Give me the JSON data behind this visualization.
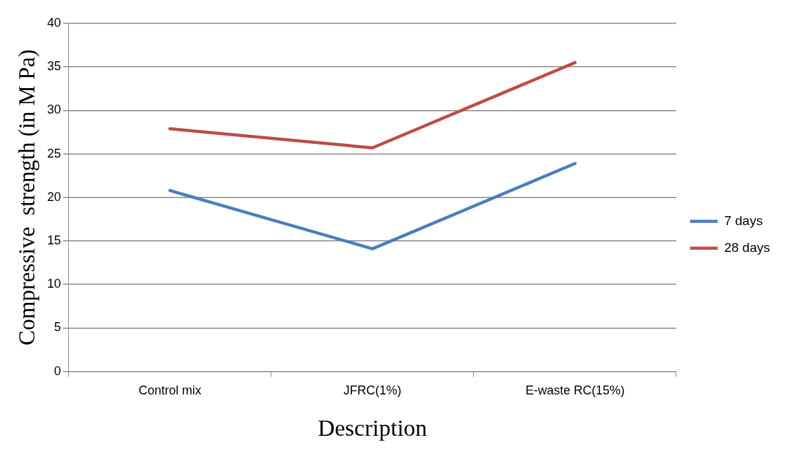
{
  "chart_data": {
    "type": "line",
    "xlabel": "Description",
    "ylabel": "Compressive  strength (in M Pa)",
    "categories": [
      "Control mix",
      "JFRC(1%)",
      "E-waste RC(15%)"
    ],
    "series": [
      {
        "name": "7 days",
        "color": "#4a7ebb",
        "values": [
          20.8,
          14.1,
          23.9
        ]
      },
      {
        "name": "28 days",
        "color": "#be4b48",
        "values": [
          27.9,
          25.7,
          35.5
        ]
      }
    ],
    "ylim": [
      0,
      40
    ],
    "yticks": [
      0,
      5,
      10,
      15,
      20,
      25,
      30,
      35,
      40
    ],
    "grid": "y",
    "legend": "right",
    "marker": "none",
    "line_style": "solid"
  }
}
